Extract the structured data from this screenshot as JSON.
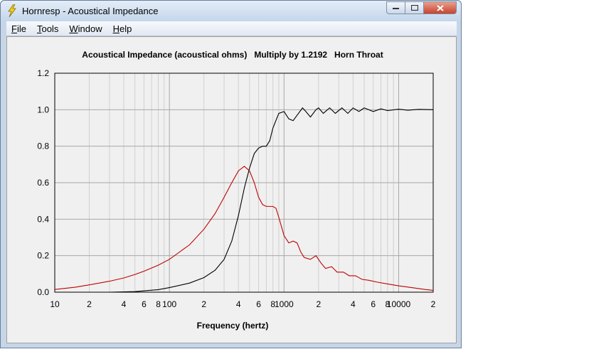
{
  "window": {
    "title": "Hornresp - Acoustical Impedance",
    "icon": "lightning-icon",
    "controls": {
      "minimize": "minimize-icon",
      "maximize": "maximize-icon",
      "close": "close-icon"
    }
  },
  "menu": {
    "items": [
      {
        "label": "File",
        "accel": "F",
        "rest": "ile"
      },
      {
        "label": "Tools",
        "accel": "T",
        "rest": "ools"
      },
      {
        "label": "Window",
        "accel": "W",
        "rest": "indow"
      },
      {
        "label": "Help",
        "accel": "H",
        "rest": "elp"
      }
    ]
  },
  "chart_data": {
    "type": "line",
    "title": "Acoustical Impedance (acoustical ohms)   Multiply by 1.2192   Horn Throat",
    "xlabel": "Frequency (hertz)",
    "ylabel": "",
    "xscale": "log",
    "xlim": [
      10,
      20000
    ],
    "ylim": [
      0,
      1.2
    ],
    "grid": true,
    "x_tick_labels": [
      "10",
      "2",
      "4",
      "6",
      "8",
      "100",
      "2",
      "4",
      "6",
      "8",
      "1000",
      "2",
      "4",
      "6",
      "8",
      "10000",
      "2"
    ],
    "y_tick_labels": [
      "0.0",
      "0.2",
      "0.4",
      "0.6",
      "0.8",
      "1.0",
      "1.2"
    ],
    "y_ticks": [
      0,
      0.2,
      0.4,
      0.6,
      0.8,
      1.0,
      1.2
    ],
    "colors": {
      "resistance": "#000000",
      "reactance": "#c00000",
      "grid_major": "#a8a8a8",
      "grid_minor": "#d0d0d0"
    },
    "series": [
      {
        "color": "#000000",
        "points": [
          [
            30,
            0.0
          ],
          [
            50,
            0.003
          ],
          [
            80,
            0.014
          ],
          [
            100,
            0.025
          ],
          [
            150,
            0.05
          ],
          [
            200,
            0.08
          ],
          [
            250,
            0.12
          ],
          [
            300,
            0.18
          ],
          [
            350,
            0.28
          ],
          [
            400,
            0.42
          ],
          [
            450,
            0.57
          ],
          [
            500,
            0.68
          ],
          [
            550,
            0.76
          ],
          [
            600,
            0.79
          ],
          [
            650,
            0.8
          ],
          [
            700,
            0.8
          ],
          [
            750,
            0.83
          ],
          [
            800,
            0.9
          ],
          [
            900,
            0.98
          ],
          [
            1000,
            0.99
          ],
          [
            1100,
            0.95
          ],
          [
            1200,
            0.94
          ],
          [
            1300,
            0.97
          ],
          [
            1450,
            1.01
          ],
          [
            1550,
            0.99
          ],
          [
            1700,
            0.96
          ],
          [
            1900,
            1.0
          ],
          [
            2000,
            1.01
          ],
          [
            2200,
            0.98
          ],
          [
            2500,
            1.01
          ],
          [
            2800,
            0.98
          ],
          [
            3200,
            1.01
          ],
          [
            3600,
            0.98
          ],
          [
            4000,
            1.01
          ],
          [
            4500,
            0.99
          ],
          [
            5000,
            1.01
          ],
          [
            6000,
            0.99
          ],
          [
            7000,
            1.005
          ],
          [
            8000,
            0.995
          ],
          [
            10000,
            1.003
          ],
          [
            12000,
            0.997
          ],
          [
            15000,
            1.002
          ],
          [
            20000,
            1.0
          ]
        ]
      },
      {
        "color": "#c00000",
        "points": [
          [
            10,
            0.015
          ],
          [
            15,
            0.027
          ],
          [
            20,
            0.04
          ],
          [
            30,
            0.06
          ],
          [
            40,
            0.078
          ],
          [
            50,
            0.097
          ],
          [
            60,
            0.115
          ],
          [
            80,
            0.148
          ],
          [
            100,
            0.18
          ],
          [
            150,
            0.26
          ],
          [
            200,
            0.345
          ],
          [
            250,
            0.43
          ],
          [
            300,
            0.52
          ],
          [
            350,
            0.6
          ],
          [
            400,
            0.665
          ],
          [
            450,
            0.69
          ],
          [
            500,
            0.665
          ],
          [
            550,
            0.6
          ],
          [
            600,
            0.52
          ],
          [
            650,
            0.48
          ],
          [
            700,
            0.47
          ],
          [
            800,
            0.47
          ],
          [
            850,
            0.46
          ],
          [
            900,
            0.41
          ],
          [
            1000,
            0.31
          ],
          [
            1100,
            0.27
          ],
          [
            1200,
            0.28
          ],
          [
            1300,
            0.27
          ],
          [
            1400,
            0.22
          ],
          [
            1500,
            0.19
          ],
          [
            1700,
            0.18
          ],
          [
            1900,
            0.2
          ],
          [
            2100,
            0.16
          ],
          [
            2300,
            0.13
          ],
          [
            2600,
            0.14
          ],
          [
            2900,
            0.11
          ],
          [
            3300,
            0.11
          ],
          [
            3700,
            0.09
          ],
          [
            4200,
            0.09
          ],
          [
            4800,
            0.07
          ],
          [
            5500,
            0.065
          ],
          [
            6500,
            0.055
          ],
          [
            8000,
            0.045
          ],
          [
            10000,
            0.035
          ],
          [
            13000,
            0.025
          ],
          [
            17000,
            0.015
          ],
          [
            20000,
            0.01
          ]
        ]
      }
    ]
  }
}
